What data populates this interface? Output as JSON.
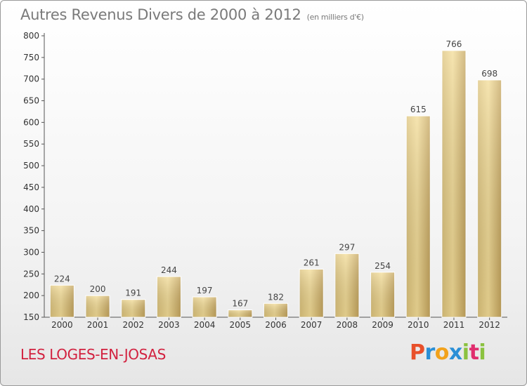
{
  "header": {
    "title": "Autres Revenus Divers de 2000 à 2012",
    "unit": "(en milliers d'€)"
  },
  "commune_name": "LES LOGES-EN-JOSAS",
  "logo": {
    "text": "Proxiti",
    "letter_colors": [
      "#e8502a",
      "#2a8fd6",
      "#f2a21b",
      "#2a8fd6",
      "#8bc23f",
      "#e02d6e",
      "#8bc23f"
    ]
  },
  "colors": {
    "bar_light": "#f5e3a3",
    "bar_dark": "#c9a95a",
    "commune_text": "#d2213f"
  },
  "chart_data": {
    "type": "bar",
    "title": "Autres Revenus Divers de 2000 à 2012",
    "subtitle": "(en milliers d'€)",
    "categories": [
      "2000",
      "2001",
      "2002",
      "2003",
      "2004",
      "2005",
      "2006",
      "2007",
      "2008",
      "2009",
      "2010",
      "2011",
      "2012"
    ],
    "values": [
      224,
      200,
      191,
      244,
      197,
      167,
      182,
      261,
      297,
      254,
      615,
      766,
      698
    ],
    "ylim": [
      150,
      800
    ],
    "yticks": [
      150,
      200,
      250,
      300,
      350,
      400,
      450,
      500,
      550,
      600,
      650,
      700,
      750,
      800
    ],
    "grid": false,
    "data_labels": true,
    "legend": "none"
  }
}
